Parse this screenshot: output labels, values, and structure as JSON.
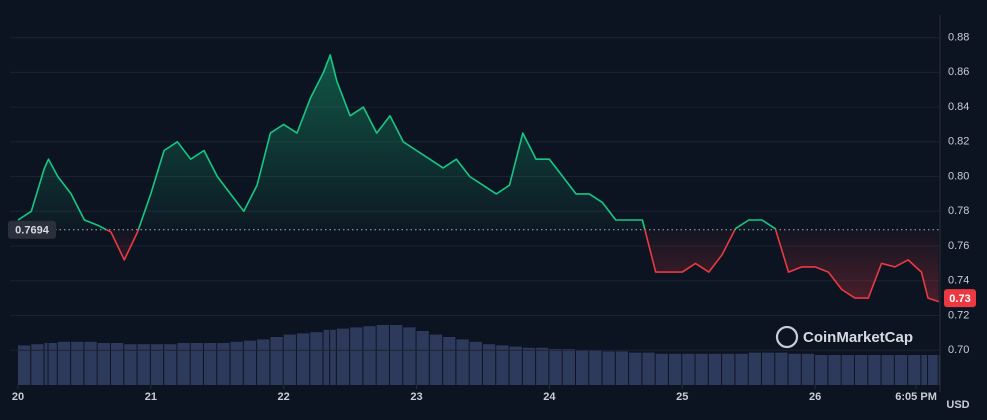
{
  "chart_data": {
    "type": "line",
    "currency": "USD",
    "watermark": "CoinMarketCap",
    "baseline": 0.7694,
    "current_price": 0.73,
    "color_up": "#16c784",
    "color_down": "#ea3943",
    "volume_color": "#2e3a5c",
    "grid": true,
    "x": [
      20.0,
      20.1,
      20.2,
      20.23,
      20.3,
      20.4,
      20.5,
      20.6,
      20.7,
      20.8,
      20.9,
      21.0,
      21.1,
      21.2,
      21.3,
      21.4,
      21.5,
      21.6,
      21.7,
      21.8,
      21.9,
      22.0,
      22.1,
      22.2,
      22.3,
      22.35,
      22.4,
      22.5,
      22.6,
      22.7,
      22.8,
      22.9,
      23.0,
      23.1,
      23.2,
      23.3,
      23.4,
      23.5,
      23.6,
      23.7,
      23.8,
      23.9,
      24.0,
      24.1,
      24.2,
      24.3,
      24.4,
      24.5,
      24.6,
      24.7,
      24.8,
      24.9,
      25.0,
      25.1,
      25.2,
      25.3,
      25.4,
      25.5,
      25.6,
      25.7,
      25.8,
      25.9,
      26.0,
      26.1,
      26.2,
      26.3,
      26.4,
      26.5,
      26.6,
      26.7,
      26.8,
      26.85,
      26.93
    ],
    "values": [
      0.775,
      0.78,
      0.805,
      0.81,
      0.8,
      0.79,
      0.775,
      0.772,
      0.768,
      0.752,
      0.768,
      0.79,
      0.815,
      0.82,
      0.81,
      0.815,
      0.8,
      0.79,
      0.78,
      0.795,
      0.825,
      0.83,
      0.825,
      0.845,
      0.86,
      0.87,
      0.855,
      0.835,
      0.84,
      0.825,
      0.835,
      0.82,
      0.815,
      0.81,
      0.805,
      0.81,
      0.8,
      0.795,
      0.79,
      0.795,
      0.825,
      0.81,
      0.81,
      0.8,
      0.79,
      0.79,
      0.785,
      0.775,
      0.775,
      0.775,
      0.745,
      0.745,
      0.745,
      0.75,
      0.745,
      0.755,
      0.77,
      0.775,
      0.775,
      0.77,
      0.745,
      0.748,
      0.748,
      0.745,
      0.735,
      0.73,
      0.73,
      0.75,
      0.748,
      0.752,
      0.745,
      0.73,
      0.728
    ],
    "volume": [
      33,
      34,
      35,
      35,
      36,
      36,
      36,
      35,
      35,
      34,
      34,
      34,
      34,
      35,
      35,
      35,
      35,
      36,
      37,
      38,
      40,
      42,
      43,
      44,
      46,
      46,
      47,
      48,
      49,
      50,
      50,
      48,
      45,
      42,
      40,
      38,
      36,
      34,
      33,
      32,
      31,
      31,
      30,
      30,
      29,
      29,
      28,
      28,
      27,
      27,
      26,
      26,
      26,
      26,
      26,
      26,
      26,
      27,
      27,
      27,
      26,
      26,
      25,
      25,
      25,
      25,
      25,
      25,
      25,
      25,
      25,
      25,
      25
    ],
    "xlim": [
      19.94,
      26.94
    ],
    "ylim": [
      0.68,
      0.893
    ],
    "xticks": [
      20,
      21,
      22,
      23,
      24,
      25,
      26,
      {
        "value": 26.76,
        "label": "6:05 PM"
      }
    ],
    "yticks": [
      {
        "value": 0.7,
        "label": "0.70"
      },
      0.72,
      0.74,
      0.76,
      0.78,
      {
        "value": 0.8,
        "label": "0.80"
      },
      0.82,
      0.84,
      0.86,
      0.88
    ]
  }
}
